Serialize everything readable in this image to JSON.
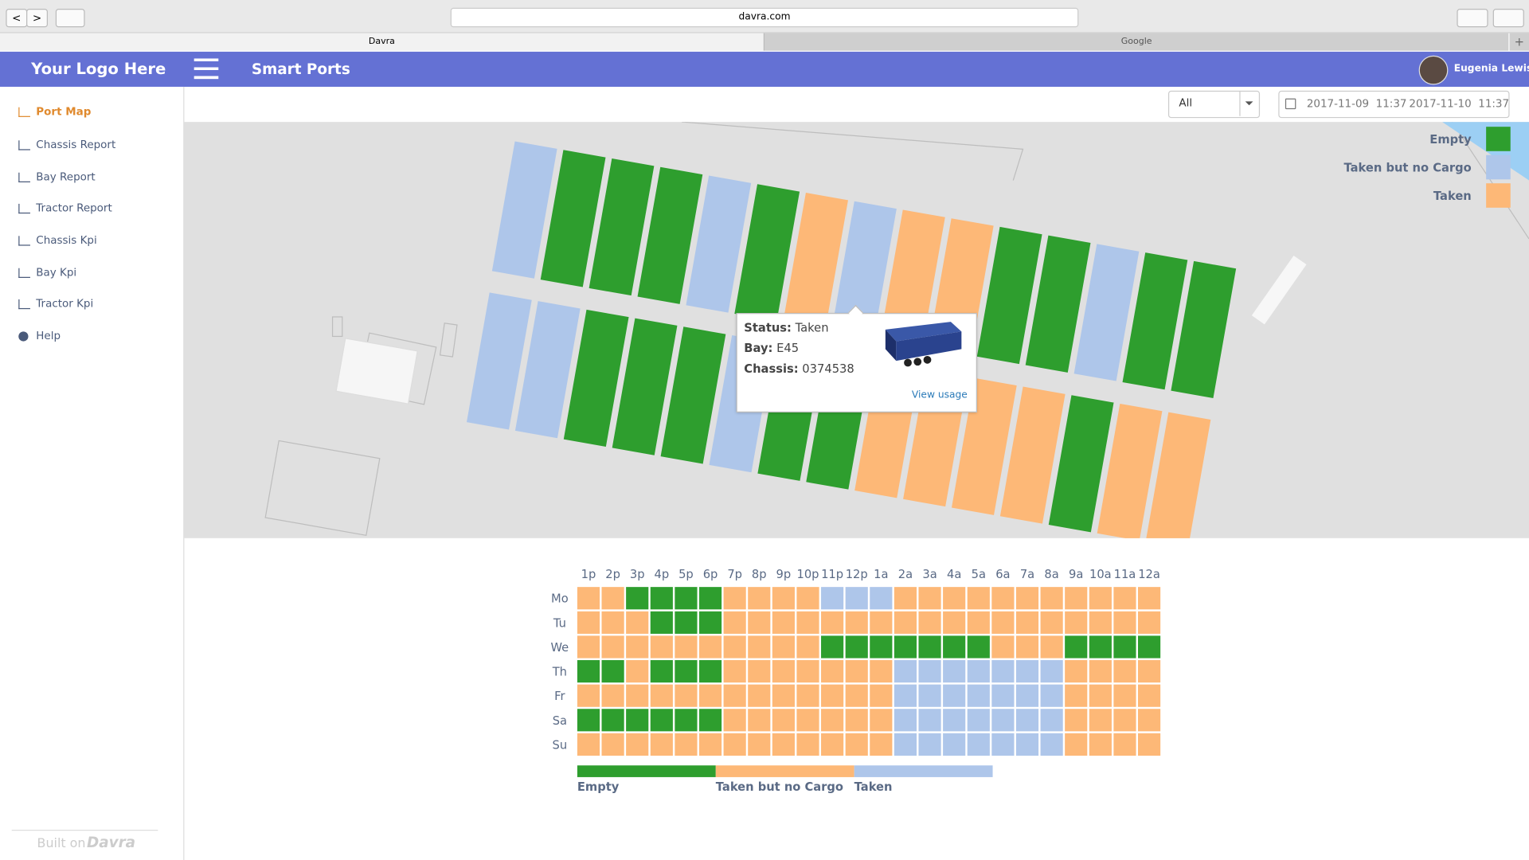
{
  "browser": {
    "url": "davra.com",
    "tabs": [
      "Davra",
      "Google"
    ]
  },
  "header": {
    "logo": "Your Logo Here",
    "title": "Smart Ports",
    "user": "Eugenia Lewis"
  },
  "sidebar": {
    "items": [
      "Port Map",
      "Chassis Report",
      "Bay Report",
      "Tractor Report",
      "Chassis Kpi",
      "Bay Kpi",
      "Tractor Kpi",
      "Help"
    ],
    "footer": "Built on",
    "brand": "Davra"
  },
  "filter": {
    "select": "All",
    "from": "2017-11-09  11:37",
    "to": "2017-11-10  11:37"
  },
  "map_legend": [
    {
      "name": "Empty",
      "color": "#2e9e2e"
    },
    {
      "name": "Taken but no Cargo",
      "color": "#aec6ea"
    },
    {
      "name": "Taken",
      "color": "#fdb877"
    }
  ],
  "tooltip": {
    "status_label": "Status:",
    "status": "Taken",
    "bay_label": "Bay:",
    "bay": "E45",
    "chassis_label": "Chassis:",
    "chassis": "0374538",
    "link": "View usage"
  },
  "heatmap": {
    "hours": [
      "1p",
      "2p",
      "3p",
      "4p",
      "5p",
      "6p",
      "7p",
      "8p",
      "9p",
      "10p",
      "11p",
      "12p",
      "1a",
      "2a",
      "3a",
      "4a",
      "5a",
      "6a",
      "7a",
      "8a",
      "9a",
      "10a",
      "11a",
      "12a"
    ],
    "days": [
      "Mo",
      "Tu",
      "We",
      "Th",
      "Fr",
      "Sa",
      "Su"
    ],
    "cells": [
      [
        1,
        1,
        0,
        0,
        0,
        0,
        1,
        1,
        1,
        1,
        2,
        2,
        2,
        1,
        1,
        1,
        1,
        1,
        1,
        1,
        1,
        1,
        1,
        1
      ],
      [
        1,
        1,
        1,
        0,
        0,
        0,
        1,
        1,
        1,
        1,
        1,
        1,
        1,
        1,
        1,
        1,
        1,
        1,
        1,
        1,
        1,
        1,
        1,
        1
      ],
      [
        1,
        1,
        1,
        1,
        1,
        1,
        1,
        1,
        1,
        1,
        0,
        0,
        0,
        0,
        0,
        0,
        0,
        1,
        1,
        1,
        0,
        0,
        0,
        0
      ],
      [
        0,
        0,
        1,
        0,
        0,
        0,
        1,
        1,
        1,
        1,
        1,
        1,
        1,
        2,
        2,
        2,
        2,
        2,
        2,
        2,
        1,
        1,
        1,
        1
      ],
      [
        1,
        1,
        1,
        1,
        1,
        1,
        1,
        1,
        1,
        1,
        1,
        1,
        1,
        2,
        2,
        2,
        2,
        2,
        2,
        2,
        1,
        1,
        1,
        1
      ],
      [
        0,
        0,
        0,
        0,
        0,
        0,
        1,
        1,
        1,
        1,
        1,
        1,
        1,
        2,
        2,
        2,
        2,
        2,
        2,
        2,
        1,
        1,
        1,
        1
      ],
      [
        1,
        1,
        1,
        1,
        1,
        1,
        1,
        1,
        1,
        1,
        1,
        1,
        1,
        2,
        2,
        2,
        2,
        2,
        2,
        2,
        1,
        1,
        1,
        1
      ]
    ],
    "legend": [
      {
        "name": "Empty",
        "color": "#2e9e2e"
      },
      {
        "name": "Taken but no Cargo",
        "color": "#fdb877"
      },
      {
        "name": "Taken",
        "color": "#aec6ea"
      }
    ]
  }
}
